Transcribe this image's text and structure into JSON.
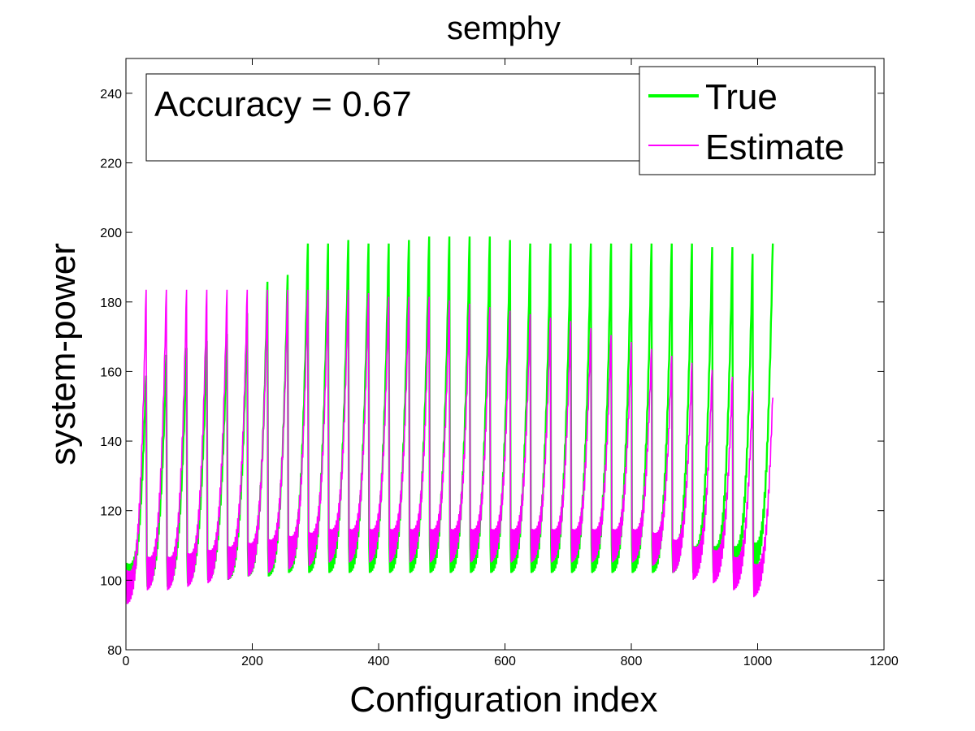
{
  "chart_data": {
    "type": "line",
    "title": "semphy",
    "xlabel": "Configuration index",
    "ylabel": "system-power",
    "xlim": [
      0,
      1200
    ],
    "ylim": [
      80,
      250
    ],
    "xticks": [
      0,
      200,
      400,
      600,
      800,
      1000,
      1200
    ],
    "yticks": [
      80,
      100,
      120,
      140,
      160,
      180,
      200,
      220,
      240
    ],
    "grid": false,
    "legend_position": "top-right",
    "annotation": "Accuracy = 0.67",
    "n_points": 1024,
    "cycle_length": 32,
    "series": [
      {
        "name": "True",
        "color": "#00ff00",
        "cycle_start": [
          101,
          102,
          102,
          103,
          104,
          104,
          105,
          105,
          106,
          106,
          106,
          106,
          106,
          106,
          106,
          106,
          106,
          106,
          106,
          106,
          106,
          106,
          106,
          106,
          106,
          106,
          106,
          106,
          106,
          106,
          106,
          107
        ],
        "cycle_peak": [
          160,
          166,
          168,
          170,
          172,
          178,
          187,
          189,
          198,
          198,
          199,
          198,
          198,
          199,
          200,
          200,
          200,
          200,
          199,
          198,
          198,
          198,
          198,
          198,
          198,
          198,
          198,
          198,
          197,
          197,
          195,
          198
        ]
      },
      {
        "name": "Estimate",
        "color": "#ff00ff",
        "cycle_start": [
          98,
          102,
          102,
          103,
          104,
          105,
          106,
          107,
          108,
          109,
          110,
          110,
          110,
          110,
          110,
          110,
          110,
          110,
          110,
          110,
          110,
          110,
          110,
          110,
          110,
          110,
          109,
          107,
          105,
          104,
          102,
          100
        ],
        "cycle_peak": [
          185,
          185,
          185,
          185,
          185,
          185,
          185,
          185,
          185,
          185,
          185,
          184,
          183,
          183,
          183,
          182,
          181,
          180,
          179,
          178,
          177,
          176,
          174,
          172,
          170,
          168,
          166,
          164,
          162,
          160,
          156,
          154
        ]
      }
    ]
  }
}
